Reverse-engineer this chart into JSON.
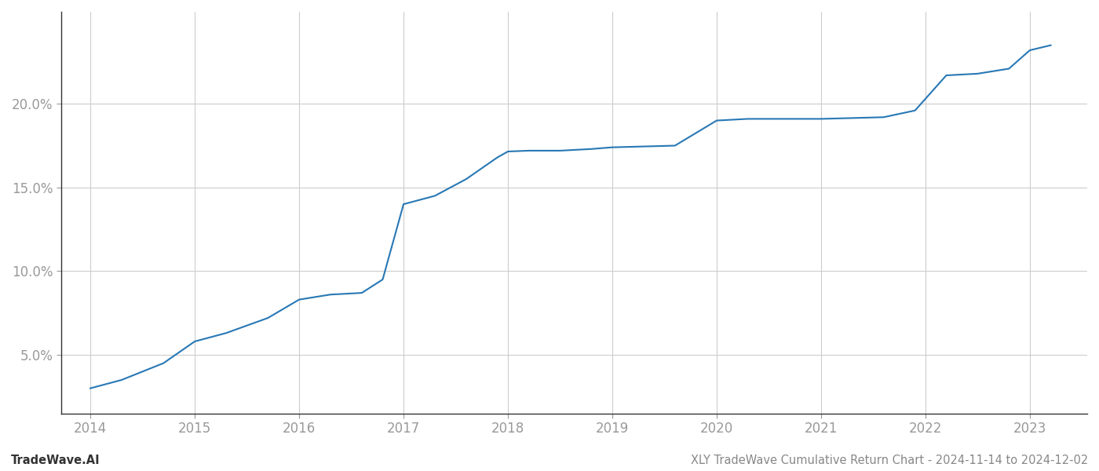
{
  "x_years": [
    2014.0,
    2014.3,
    2014.7,
    2015.0,
    2015.3,
    2015.7,
    2016.0,
    2016.3,
    2016.6,
    2016.8,
    2017.0,
    2017.3,
    2017.6,
    2017.9,
    2018.0,
    2018.2,
    2018.5,
    2018.8,
    2019.0,
    2019.3,
    2019.6,
    2020.0,
    2020.3,
    2020.6,
    2021.0,
    2021.3,
    2021.6,
    2021.9,
    2022.2,
    2022.5,
    2022.8,
    2023.0,
    2023.2
  ],
  "y_values": [
    3.0,
    3.5,
    4.5,
    5.8,
    6.3,
    7.2,
    8.3,
    8.6,
    8.7,
    9.5,
    14.0,
    14.5,
    15.5,
    16.8,
    17.15,
    17.2,
    17.2,
    17.3,
    17.4,
    17.45,
    17.5,
    19.0,
    19.1,
    19.1,
    19.1,
    19.15,
    19.2,
    19.6,
    21.7,
    21.8,
    22.1,
    23.2,
    23.5
  ],
  "line_color": "#2878b5",
  "line_width": 1.5,
  "background_color": "#ffffff",
  "grid_color": "#cccccc",
  "tick_color": "#999999",
  "x_ticks": [
    2014,
    2015,
    2016,
    2017,
    2018,
    2019,
    2020,
    2021,
    2022,
    2023
  ],
  "y_ticks": [
    5.0,
    10.0,
    15.0,
    20.0
  ],
  "y_tick_labels": [
    "5.0%",
    "10.0%",
    "15.0%",
    "20.0%"
  ],
  "xlim": [
    2013.72,
    2023.55
  ],
  "ylim": [
    1.5,
    25.5
  ],
  "footer_left": "TradeWave.AI",
  "footer_right": "XLY TradeWave Cumulative Return Chart - 2024-11-14 to 2024-12-02",
  "footer_color": "#888888",
  "footer_fontsize": 10.5,
  "spine_color": "#333333",
  "tick_fontsize": 12
}
